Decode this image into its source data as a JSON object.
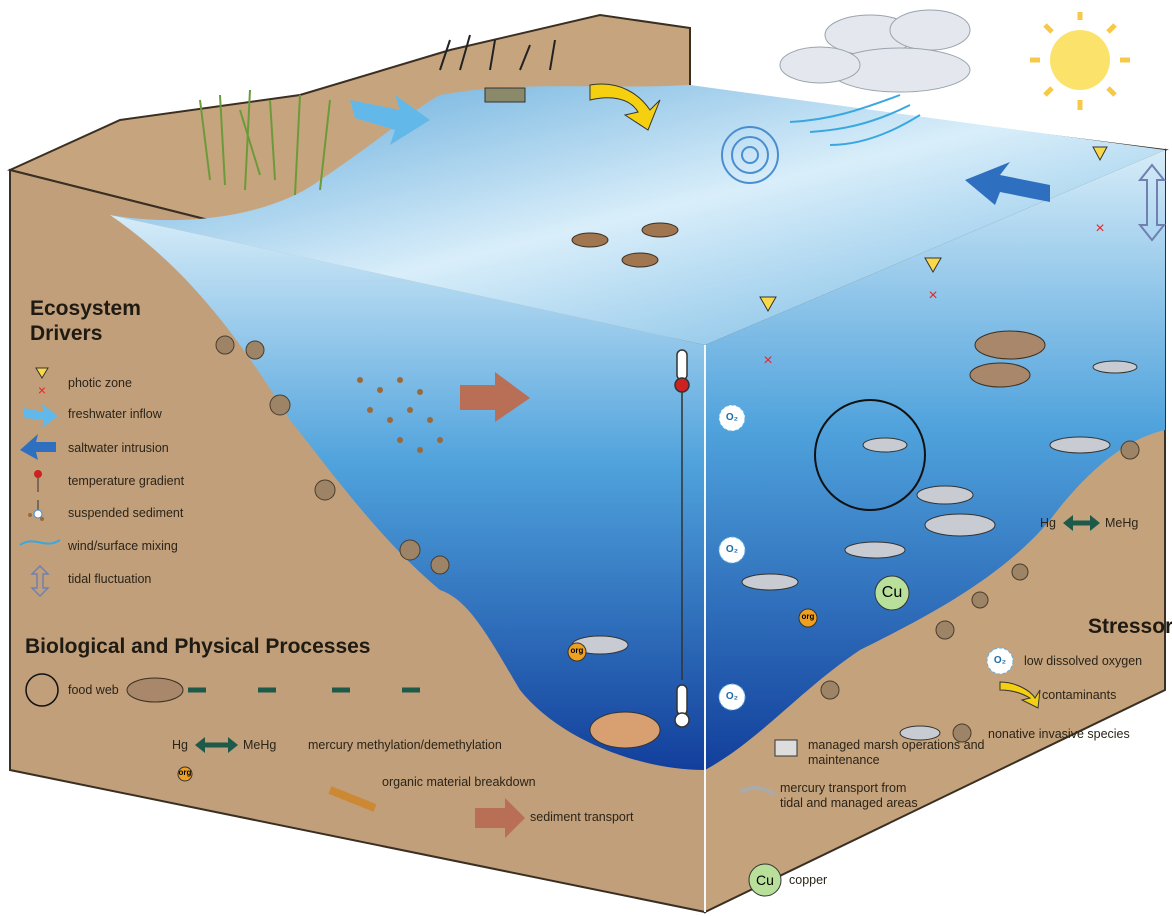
{
  "drivers": {
    "title": "Ecosystem Drivers",
    "items": [
      "photic zone",
      "freshwater inflow",
      "saltwater intrusion",
      "temperature gradient",
      "suspended sediment",
      "wind/surface mixing",
      "tidal fluctuation"
    ]
  },
  "processes": {
    "title": "Biological and Physical Processes",
    "food_web": "food web",
    "hg": "Hg",
    "mehg": "MeHg",
    "methylation": "mercury methylation/demethylation",
    "org": "org",
    "organic": "organic material breakdown",
    "sediment": "sediment transport"
  },
  "stressors": {
    "title": "Stressors",
    "o2": "O₂",
    "low_oxygen": "low dissolved oxygen",
    "contaminants": "contaminants",
    "invasive": "nonative invasive species",
    "marsh": "managed marsh operations and maintenance",
    "mercury": "mercury transport from tidal and managed areas",
    "cu": "Cu",
    "copper": "copper"
  },
  "scene": {
    "o2": "O₂",
    "cu": "Cu",
    "org": "org",
    "hg": "Hg",
    "mehg": "MeHg"
  }
}
